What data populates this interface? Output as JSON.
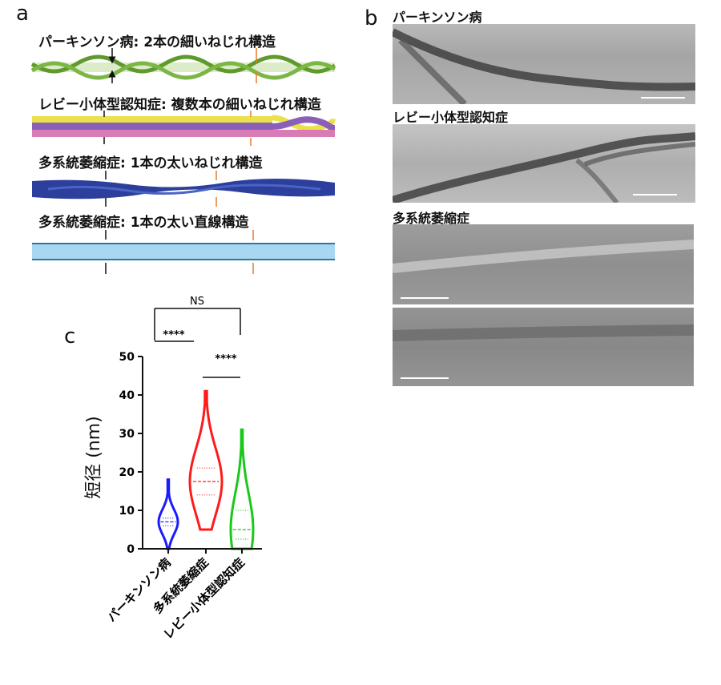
{
  "panel_a": {
    "letter": "a",
    "rows": [
      {
        "label": "パーキンソン病: 2本の細いねじれ構造"
      },
      {
        "label": "レビー小体型認知症: 複数本の細いねじれ構造"
      },
      {
        "label": "多系統萎縮症: 1本の太いねじれ構造"
      },
      {
        "label": "多系統萎縮症: 1本の太い直線構造"
      }
    ],
    "colors": {
      "green": "#6fa83a",
      "yellow": "#e9e04a",
      "purple": "#8b5fb8",
      "pink": "#d97bb5",
      "blue": "#2c3f9c",
      "lightblue": "#a9d6f0",
      "orange": "#e87a2a"
    }
  },
  "panel_b": {
    "letter": "b",
    "images": [
      {
        "label": "パーキンソン病"
      },
      {
        "label": "レビー小体型認知症"
      },
      {
        "label": "多系統萎縮症"
      },
      {
        "label": ""
      }
    ]
  },
  "panel_c": {
    "letter": "c",
    "ns_label": "NS",
    "sig1": "****",
    "sig2": "****"
  },
  "chart_data": {
    "type": "violin",
    "ylabel": "短径 (nm)",
    "ylim": [
      0,
      50
    ],
    "yticks": [
      "0",
      "10",
      "20",
      "30",
      "40",
      "50"
    ],
    "categories": [
      "パーキンソン病",
      "多系統萎縮症",
      "レビー小体型認知症"
    ],
    "series": [
      {
        "values_range": [
          0,
          18
        ],
        "median": 7,
        "q1": 6,
        "q3": 8,
        "color": "#1a1aff"
      },
      {
        "values_range": [
          5,
          41
        ],
        "median": 17.5,
        "q1": 14,
        "q3": 21,
        "color": "#ff1a1a"
      },
      {
        "values_range": [
          0,
          31
        ],
        "median": 5,
        "q1": 2.5,
        "q3": 10,
        "color": "#1ac81a"
      }
    ]
  }
}
